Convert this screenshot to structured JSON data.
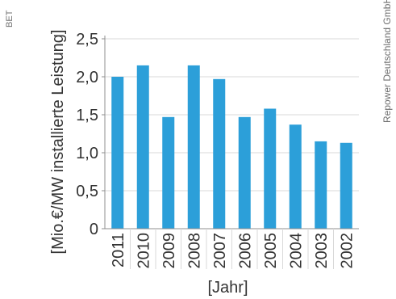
{
  "side_labels": {
    "left": "BET",
    "right": "Repower Deutschland GmbH"
  },
  "colors": {
    "bar": "#2c9fd9",
    "grid": "#d9d9d9",
    "axis": "#8f8f8f",
    "text": "#333333"
  },
  "chart_data": {
    "type": "bar",
    "categories": [
      "2011",
      "2010",
      "2009",
      "2008",
      "2007",
      "2006",
      "2005",
      "2004",
      "2003",
      "2002"
    ],
    "values": [
      2.0,
      2.15,
      1.47,
      2.15,
      1.97,
      1.47,
      1.58,
      1.37,
      1.15,
      1.13
    ],
    "ylabel": "[Mio.€/MW installierte Leistung]",
    "xlabel": "[Jahr]",
    "ylim": [
      0,
      2.5
    ],
    "yticks": [
      {
        "value": 0,
        "label": "0"
      },
      {
        "value": 0.5,
        "label": "0,5"
      },
      {
        "value": 1.0,
        "label": "1,0"
      },
      {
        "value": 1.5,
        "label": "1,5"
      },
      {
        "value": 2.0,
        "label": "2,0"
      },
      {
        "value": 2.5,
        "label": "2,5"
      }
    ],
    "grid": true,
    "legend": "none"
  }
}
